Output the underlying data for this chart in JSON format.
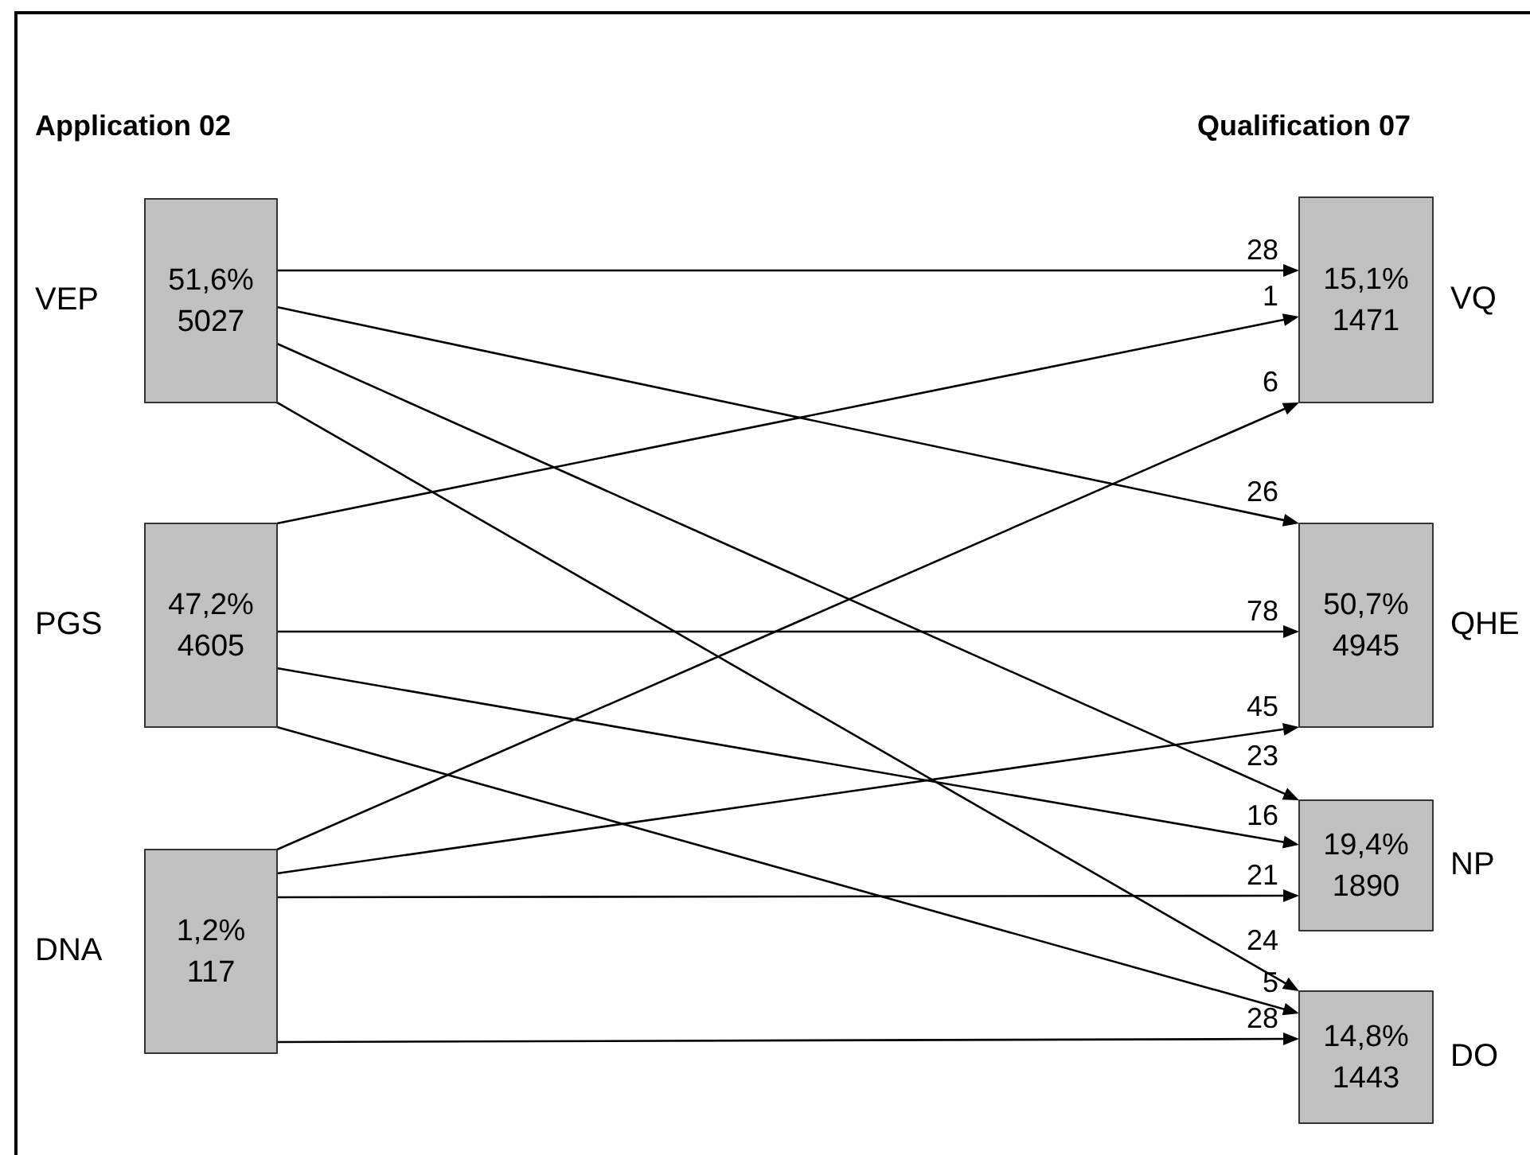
{
  "chart_data": {
    "type": "other",
    "data_labels": true,
    "annotations": [
      "Application 02",
      "Qualification 07"
    ],
    "categories": [
      "VEP",
      "PGS",
      "DNA",
      "VQ",
      "QHE",
      "NP",
      "DO"
    ],
    "series": [
      {
        "color": "#c0c0c0",
        "values": [
          51.6,
          47.2,
          1.2,
          15.1,
          50.7,
          19.4,
          14.8
        ],
        "value_labels": [
          "51,6%",
          "47,2%",
          "1,2%",
          "15,1%",
          "50,7%",
          "19,4%",
          "14,8%"
        ]
      },
      {
        "values": [
          5027,
          4605,
          117,
          1471,
          4945,
          1890,
          1443
        ]
      },
      {
        "color": "#000000",
        "values": [
          null,
          null,
          null,
          28,
          26,
          23,
          24
        ]
      },
      {
        "color": "#000000",
        "values": [
          null,
          null,
          null,
          1,
          78,
          16,
          5
        ]
      },
      {
        "color": "#000000",
        "values": [
          null,
          null,
          null,
          6,
          45,
          21,
          28
        ]
      }
    ]
  }
}
